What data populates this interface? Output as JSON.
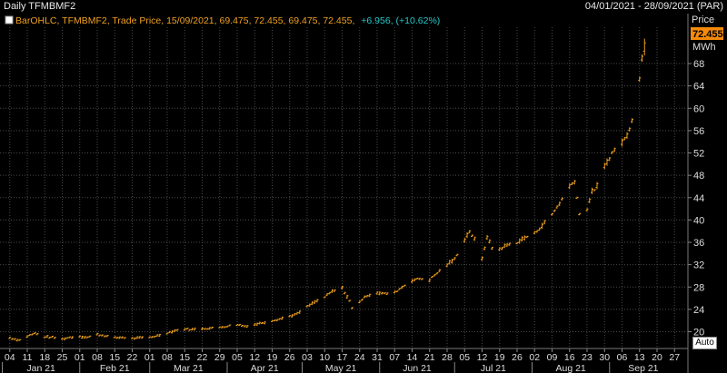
{
  "header": {
    "title": "Daily TFMBMF2",
    "date_range": "04/01/2021 - 28/09/2021 (PAR)"
  },
  "legend": {
    "series_text": "BarOHLC, TFMBMF2, Trade Price, 15/09/2021, 69.475, 72.455, 69.475, 72.455,",
    "change_text": "+6.956, (+10.62%)",
    "icon": "chart-settings-icon"
  },
  "axis": {
    "price_label": "Price",
    "unit_label": "MWh",
    "last_price": "72.455",
    "auto_label": "Auto"
  },
  "colors": {
    "background": "#000000",
    "grid": "#4a4a4a",
    "bars": "#f0a020",
    "legend_text": "#f0a020",
    "change_text": "#22c8c8",
    "last_price_bg": "#f58a0a"
  },
  "chart_data": {
    "type": "line",
    "subtype": "ohlc-bar",
    "series": [
      {
        "name": "TFMBMF2",
        "points": [
          [
            "2021-01-04",
            18.9
          ],
          [
            "2021-01-08",
            18.5
          ],
          [
            "2021-01-11",
            19.2
          ],
          [
            "2021-01-14",
            19.7
          ],
          [
            "2021-01-18",
            19.1
          ],
          [
            "2021-01-21",
            19.0
          ],
          [
            "2021-01-25",
            18.7
          ],
          [
            "2021-01-28",
            19.0
          ],
          [
            "2021-02-01",
            19.2
          ],
          [
            "2021-02-04",
            19.0
          ],
          [
            "2021-02-08",
            19.5
          ],
          [
            "2021-02-11",
            19.3
          ],
          [
            "2021-02-15",
            18.9
          ],
          [
            "2021-02-18",
            19.0
          ],
          [
            "2021-02-22",
            18.8
          ],
          [
            "2021-02-25",
            18.9
          ],
          [
            "2021-03-01",
            19.0
          ],
          [
            "2021-03-04",
            19.3
          ],
          [
            "2021-03-08",
            19.8
          ],
          [
            "2021-03-11",
            20.2
          ],
          [
            "2021-03-15",
            20.5
          ],
          [
            "2021-03-18",
            20.4
          ],
          [
            "2021-03-22",
            20.6
          ],
          [
            "2021-03-25",
            20.6
          ],
          [
            "2021-03-29",
            20.8
          ],
          [
            "2021-04-01",
            21.0
          ],
          [
            "2021-04-05",
            21.3
          ],
          [
            "2021-04-08",
            21.0
          ],
          [
            "2021-04-12",
            21.3
          ],
          [
            "2021-04-15",
            21.6
          ],
          [
            "2021-04-19",
            22.0
          ],
          [
            "2021-04-22",
            22.3
          ],
          [
            "2021-04-26",
            22.8
          ],
          [
            "2021-04-29",
            23.2
          ],
          [
            "2021-05-03",
            24.5
          ],
          [
            "2021-05-06",
            25.3
          ],
          [
            "2021-05-10",
            26.2
          ],
          [
            "2021-05-13",
            27.2
          ],
          [
            "2021-05-17",
            27.8
          ],
          [
            "2021-05-20",
            25.5
          ],
          [
            "2021-05-21",
            24.2
          ],
          [
            "2021-05-24",
            25.4
          ],
          [
            "2021-05-27",
            26.5
          ],
          [
            "2021-05-31",
            27.0
          ],
          [
            "2021-06-03",
            26.8
          ],
          [
            "2021-06-07",
            27.0
          ],
          [
            "2021-06-10",
            28.0
          ],
          [
            "2021-06-14",
            29.2
          ],
          [
            "2021-06-17",
            29.5
          ],
          [
            "2021-06-21",
            29.3
          ],
          [
            "2021-06-24",
            30.5
          ],
          [
            "2021-06-28",
            32.0
          ],
          [
            "2021-07-01",
            33.0
          ],
          [
            "2021-07-05",
            36.5
          ],
          [
            "2021-07-07",
            38.0
          ],
          [
            "2021-07-09",
            36.5
          ],
          [
            "2021-07-12",
            33.0
          ],
          [
            "2021-07-14",
            37.0
          ],
          [
            "2021-07-16",
            35.0
          ],
          [
            "2021-07-19",
            34.8
          ],
          [
            "2021-07-22",
            35.5
          ],
          [
            "2021-07-26",
            36.0
          ],
          [
            "2021-07-29",
            36.8
          ],
          [
            "2021-08-02",
            37.6
          ],
          [
            "2021-08-05",
            39.0
          ],
          [
            "2021-08-09",
            41.0
          ],
          [
            "2021-08-12",
            43.0
          ],
          [
            "2021-08-16",
            46.0
          ],
          [
            "2021-08-18",
            47.0
          ],
          [
            "2021-08-20",
            41.0
          ],
          [
            "2021-08-23",
            42.0
          ],
          [
            "2021-08-25",
            45.0
          ],
          [
            "2021-08-27",
            46.0
          ],
          [
            "2021-08-30",
            49.5
          ],
          [
            "2021-09-02",
            52.0
          ],
          [
            "2021-09-06",
            54.0
          ],
          [
            "2021-09-08",
            55.0
          ],
          [
            "2021-09-10",
            58.0
          ],
          [
            "2021-09-13",
            65.5
          ],
          [
            "2021-09-15",
            72.455
          ]
        ]
      }
    ],
    "x_ticks": [
      "04",
      "11",
      "18",
      "25",
      "01",
      "08",
      "15",
      "22",
      "01",
      "08",
      "15",
      "22",
      "29",
      "05",
      "12",
      "19",
      "26",
      "03",
      "10",
      "17",
      "24",
      "31",
      "07",
      "14",
      "21",
      "28",
      "05",
      "12",
      "19",
      "26",
      "02",
      "09",
      "16",
      "23",
      "30",
      "06",
      "13",
      "20",
      "27"
    ],
    "x_months": [
      "Jan 21",
      "Feb 21",
      "Mar 21",
      "Apr 21",
      "May 21",
      "Jun 21",
      "Jul 21",
      "Aug 21",
      "Sep 21"
    ],
    "y_ticks": [
      20,
      24,
      28,
      32,
      36,
      40,
      44,
      48,
      52,
      56,
      60,
      64,
      68
    ],
    "ylim": [
      17,
      74.5
    ],
    "xlim": [
      "2021-01-03",
      "2021-09-28"
    ],
    "grid": true,
    "ylabel": "MWh"
  }
}
